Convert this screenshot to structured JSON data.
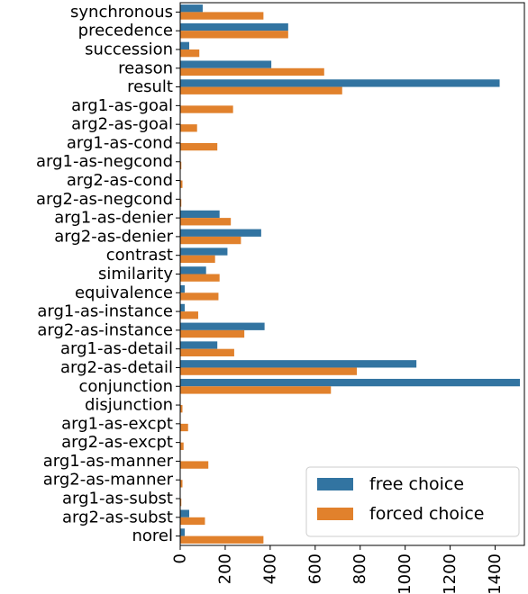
{
  "chart_data": {
    "type": "bar",
    "orientation": "horizontal",
    "categories": [
      "synchronous",
      "precedence",
      "succession",
      "reason",
      "result",
      "arg1-as-goal",
      "arg2-as-goal",
      "arg1-as-cond",
      "arg1-as-negcond",
      "arg2-as-cond",
      "arg2-as-negcond",
      "arg1-as-denier",
      "arg2-as-denier",
      "contrast",
      "similarity",
      "equivalence",
      "arg1-as-instance",
      "arg2-as-instance",
      "arg1-as-detail",
      "arg2-as-detail",
      "conjunction",
      "disjunction",
      "arg1-as-excpt",
      "arg2-as-excpt",
      "arg1-as-manner",
      "arg2-as-manner",
      "arg1-as-subst",
      "arg2-as-subst",
      "norel"
    ],
    "series": [
      {
        "name": "free choice",
        "color": "#3274a1",
        "values": [
          100,
          480,
          40,
          405,
          1420,
          0,
          0,
          0,
          0,
          0,
          0,
          175,
          360,
          210,
          115,
          20,
          20,
          375,
          165,
          1050,
          1510,
          0,
          0,
          0,
          0,
          0,
          0,
          40,
          20
        ]
      },
      {
        "name": "forced choice",
        "color": "#e1812c",
        "values": [
          370,
          480,
          85,
          640,
          720,
          235,
          75,
          165,
          5,
          10,
          5,
          225,
          270,
          155,
          175,
          170,
          80,
          285,
          240,
          785,
          670,
          10,
          35,
          15,
          125,
          10,
          5,
          110,
          370
        ]
      }
    ],
    "xlim": [
      0,
      1530
    ],
    "xticks": [
      "0",
      "200",
      "400",
      "600",
      "800",
      "1000",
      "1200",
      "1400"
    ],
    "xtick_values": [
      0,
      200,
      400,
      600,
      800,
      1000,
      1200,
      1400
    ],
    "title": "",
    "xlabel": "",
    "ylabel": "",
    "grid": false,
    "legend_position": "lower right"
  }
}
